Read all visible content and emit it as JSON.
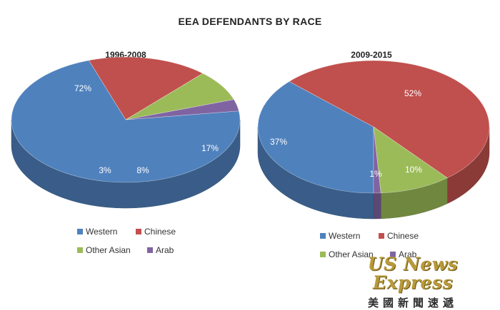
{
  "title": "EEA DEFENDANTS BY RACE",
  "colors": {
    "Western": "#4f81bd",
    "Chinese": "#c0504d",
    "Other Asian": "#9bbb59",
    "Arab": "#8064a2"
  },
  "chart_data": [
    {
      "type": "pie",
      "style": "3d",
      "title": "1996-2008",
      "categories": [
        "Western",
        "Chinese",
        "Other Asian",
        "Arab"
      ],
      "values": [
        72,
        17,
        8,
        3
      ],
      "data_labels": [
        "72%",
        "17%",
        "8%",
        "3%"
      ],
      "legend": [
        "Western",
        "Chinese",
        "Other Asian",
        "Arab"
      ],
      "legend_position": "bottom"
    },
    {
      "type": "pie",
      "style": "3d",
      "title": "2009-2015",
      "categories": [
        "Western",
        "Chinese",
        "Other Asian",
        "Arab"
      ],
      "values": [
        37,
        52,
        10,
        1
      ],
      "data_labels": [
        "37%",
        "52%",
        "10%",
        "1%"
      ],
      "legend": [
        "Western",
        "Chinese",
        "Other Asian",
        "Arab"
      ],
      "legend_position": "bottom"
    }
  ],
  "watermark": {
    "name": "US News Express",
    "chinese": "美國新聞速遞"
  }
}
